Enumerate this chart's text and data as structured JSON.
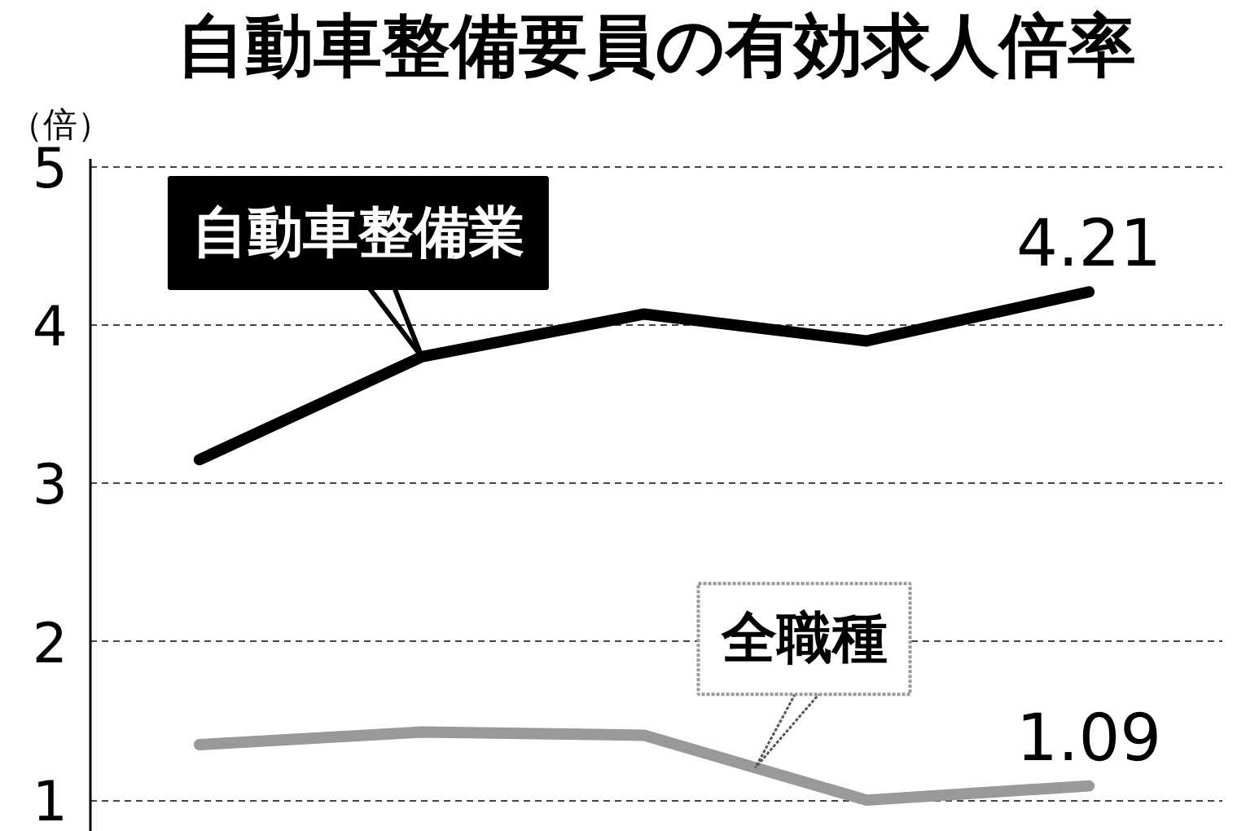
{
  "chart_data": {
    "type": "line",
    "title": "自動車整備要員の有効求人倍率",
    "ylabel": "（倍）",
    "categories": [
      null,
      null,
      null,
      null,
      null
    ],
    "series": [
      {
        "name": "自動車整備業",
        "color": "#000000",
        "values": [
          3.15,
          3.8,
          4.07,
          3.9,
          4.21
        ],
        "value_labels": [
          null,
          null,
          null,
          null,
          "4.21"
        ]
      },
      {
        "name": "全職種",
        "color": "#999999",
        "values": [
          1.35,
          1.43,
          1.41,
          1.0,
          1.09
        ],
        "value_labels": [
          null,
          null,
          null,
          null,
          "1.09"
        ]
      }
    ],
    "ylim": [
      0.8,
      5.05
    ],
    "yticks": [
      1,
      2,
      3,
      4,
      5
    ],
    "grid": "y",
    "tick_labels": "y",
    "line_style": "solid"
  }
}
